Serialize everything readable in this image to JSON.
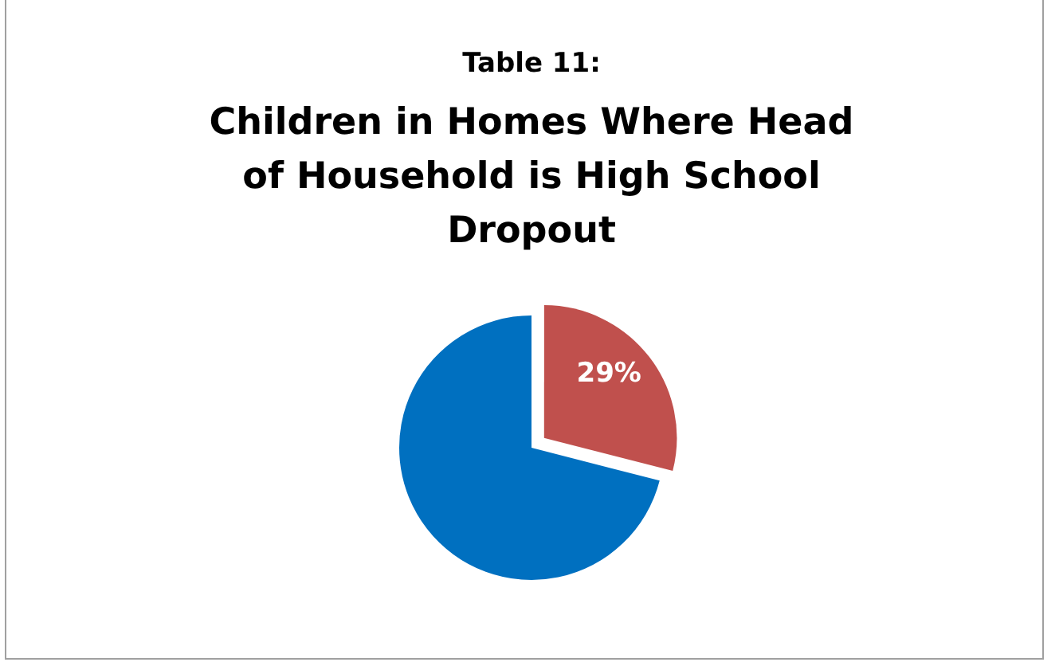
{
  "chart_data": {
    "type": "pie",
    "title": "Table 11:",
    "subtitle": "Children in Homes Where Head of Household is High School Dropout",
    "categories": [
      null,
      null
    ],
    "values": [
      29,
      71
    ],
    "colors": [
      "#c0504d",
      "#0070c0"
    ],
    "value_labels": [
      "29%",
      null
    ],
    "legend": false
  }
}
